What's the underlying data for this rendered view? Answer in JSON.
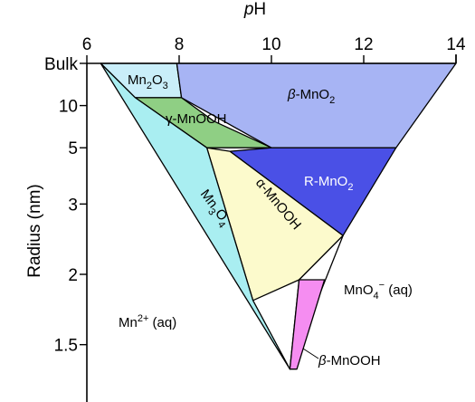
{
  "chart_data": {
    "type": "phase-diagram",
    "xlabel_prefix": "p",
    "xlabel_main": "H",
    "ylabel": "Radius (nm)",
    "x_ticks": [
      "6",
      "8",
      "10",
      "12",
      "14"
    ],
    "y_ticks": [
      "Bulk",
      "10",
      "5",
      "3",
      "2",
      "1.5"
    ],
    "xlim": [
      6,
      14
    ],
    "regions": [
      {
        "id": "mn2o3",
        "color": "#c9eef9",
        "vertices": [
          [
            6.3,
            "Bulk"
          ],
          [
            7.95,
            "Bulk"
          ],
          [
            8.05,
            12.3
          ],
          [
            7.05,
            12.3
          ]
        ]
      },
      {
        "id": "beta-mno2",
        "color": "#a7b4f4",
        "vertices": [
          [
            7.95,
            "Bulk"
          ],
          [
            14.0,
            "Bulk"
          ],
          [
            12.7,
            5.0
          ],
          [
            10.0,
            5.0
          ],
          [
            8.05,
            12.3
          ]
        ]
      },
      {
        "id": "gamma-mnooh",
        "color": "#8fcf84",
        "vertices": [
          [
            7.05,
            12.3
          ],
          [
            8.05,
            12.3
          ],
          [
            8.75,
            7.3
          ],
          [
            10.0,
            5.0
          ],
          [
            8.6,
            5.0
          ]
        ]
      },
      {
        "id": "r-mno2",
        "color": "#4a50e6",
        "vertices": [
          [
            10.0,
            5.0
          ],
          [
            12.7,
            5.0
          ],
          [
            11.55,
            2.45
          ],
          [
            9.1,
            4.8
          ]
        ]
      },
      {
        "id": "alpha-mnooh",
        "color": "#fcfacc",
        "vertices": [
          [
            8.6,
            5.0
          ],
          [
            9.1,
            4.8
          ],
          [
            11.55,
            2.45
          ],
          [
            10.6,
            1.95
          ],
          [
            9.6,
            1.78
          ]
        ]
      },
      {
        "id": "mn3o4",
        "color": "#a9eef1",
        "vertices": [
          [
            6.3,
            "Bulk"
          ],
          [
            7.05,
            12.3
          ],
          [
            8.6,
            5.0
          ],
          [
            9.6,
            1.78
          ],
          [
            10.4,
            1.38
          ]
        ]
      },
      {
        "id": "mno4-region",
        "color": "#ffffff",
        "vertices": [
          [
            11.55,
            2.45
          ],
          [
            10.6,
            1.95
          ],
          [
            10.4,
            1.38
          ]
        ]
      },
      {
        "id": "beta-mnooh",
        "color": "#f58df1",
        "vertices": [
          [
            10.6,
            1.95
          ],
          [
            11.15,
            1.95
          ],
          [
            10.55,
            1.38
          ],
          [
            10.4,
            1.38
          ]
        ]
      }
    ],
    "labels": {
      "mn2o3_base": "Mn",
      "mn2o3_sub1": "2",
      "mn2o3_mid": "O",
      "mn2o3_sub2": "3",
      "beta_mno2_prefix": "β",
      "beta_mno2_base": "-MnO",
      "beta_mno2_sub": "2",
      "gamma_mnooh": "γ-MnOOH",
      "r_mno2_base": "R-MnO",
      "r_mno2_sub": "2",
      "mn3o4_base": "Mn",
      "mn3o4_sub1": "3",
      "mn3o4_mid": "O",
      "mn3o4_sub2": "4",
      "alpha_mnooh": "α-MnOOH",
      "mno4_base": "MnO",
      "mno4_sub": "4",
      "mno4_sup": "−",
      "mno4_tail": " (aq)",
      "mn2plus_base": "Mn",
      "mn2plus_sup": "2+",
      "mn2plus_tail": " (aq)",
      "beta_mnooh_prefix": "β",
      "beta_mnooh_base": "-MnOOH"
    }
  }
}
